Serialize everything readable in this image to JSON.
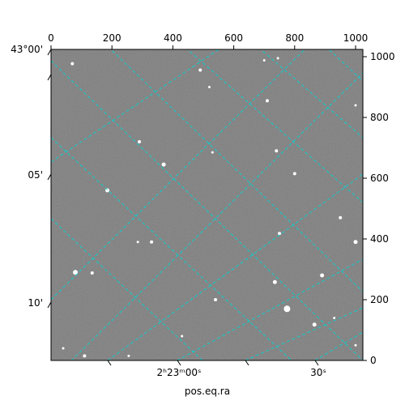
{
  "chart_data": {
    "type": "image",
    "xlabel": "pos.eq.ra",
    "ylabel": "",
    "pixel_x_axis": {
      "range": [
        0,
        1024
      ],
      "ticks": [
        0,
        200,
        400,
        600,
        800,
        1000
      ]
    },
    "pixel_y_axis": {
      "range": [
        0,
        1024
      ],
      "ticks": [
        0,
        200,
        400,
        600,
        800,
        1000
      ]
    },
    "dec_tick_labels": [
      "43°00'",
      "05'",
      "10'"
    ],
    "ra_tick_labels": [
      "2ʰ23ᵐ00ˢ",
      "30ˢ"
    ],
    "grid": true,
    "grid_color": "#00d5d5",
    "background_color": "#7a7a7a",
    "stars": [
      {
        "x": 70,
        "y": 977,
        "r": 2
      },
      {
        "x": 490,
        "y": 956,
        "r": 2
      },
      {
        "x": 520,
        "y": 900,
        "r": 1.5
      },
      {
        "x": 700,
        "y": 988,
        "r": 1.5
      },
      {
        "x": 745,
        "y": 995,
        "r": 1.5
      },
      {
        "x": 710,
        "y": 855,
        "r": 2
      },
      {
        "x": 1000,
        "y": 840,
        "r": 1.5
      },
      {
        "x": 290,
        "y": 720,
        "r": 2
      },
      {
        "x": 370,
        "y": 645,
        "r": 2.5
      },
      {
        "x": 530,
        "y": 685,
        "r": 1.5
      },
      {
        "x": 740,
        "y": 690,
        "r": 2
      },
      {
        "x": 800,
        "y": 615,
        "r": 2
      },
      {
        "x": 185,
        "y": 560,
        "r": 2.5
      },
      {
        "x": 950,
        "y": 470,
        "r": 2
      },
      {
        "x": 750,
        "y": 418,
        "r": 2
      },
      {
        "x": 1000,
        "y": 390,
        "r": 2.5
      },
      {
        "x": 285,
        "y": 390,
        "r": 1.5
      },
      {
        "x": 330,
        "y": 390,
        "r": 2
      },
      {
        "x": 80,
        "y": 290,
        "r": 3
      },
      {
        "x": 135,
        "y": 288,
        "r": 2
      },
      {
        "x": 735,
        "y": 258,
        "r": 2.5
      },
      {
        "x": 890,
        "y": 280,
        "r": 2.5
      },
      {
        "x": 540,
        "y": 200,
        "r": 2
      },
      {
        "x": 775,
        "y": 170,
        "r": 4
      },
      {
        "x": 865,
        "y": 118,
        "r": 2.5
      },
      {
        "x": 930,
        "y": 140,
        "r": 1.5
      },
      {
        "x": 110,
        "y": 15,
        "r": 2
      },
      {
        "x": 40,
        "y": 40,
        "r": 1.5
      },
      {
        "x": 255,
        "y": 15,
        "r": 1.5
      },
      {
        "x": 430,
        "y": 80,
        "r": 1.5
      },
      {
        "x": 1000,
        "y": 50,
        "r": 1.5
      }
    ]
  }
}
